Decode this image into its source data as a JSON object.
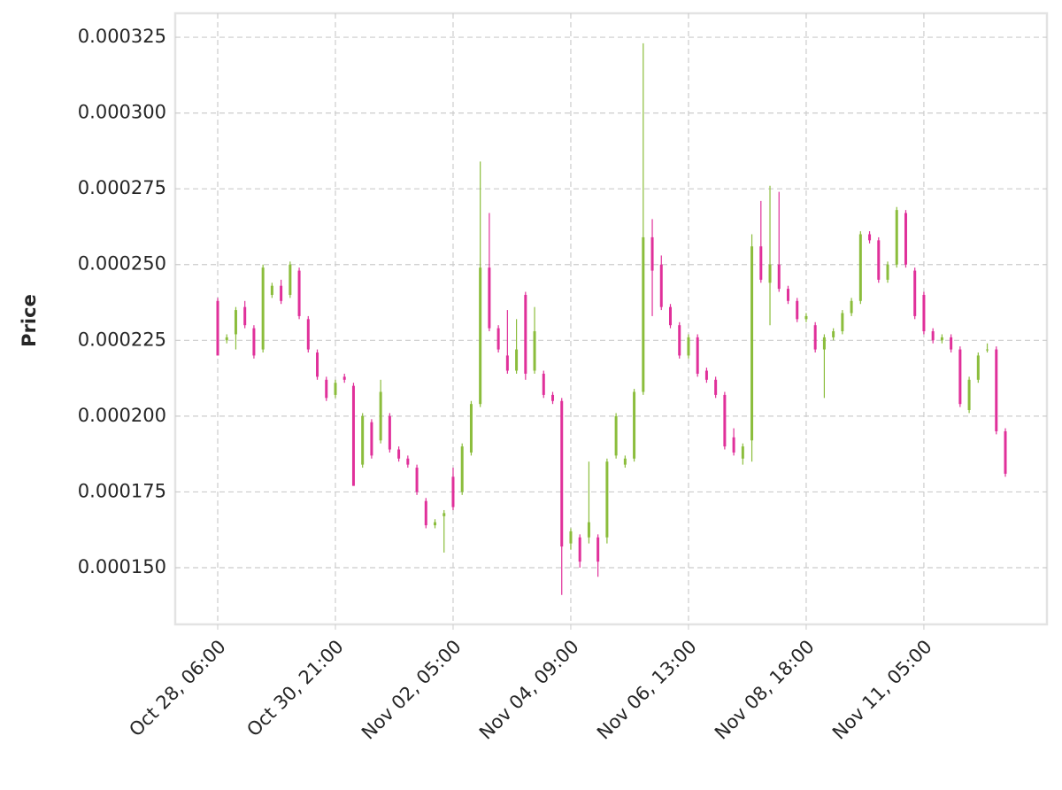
{
  "chart_data": {
    "type": "candlestick",
    "ylabel": "Price",
    "categories": [
      "Oct 28, 06:00",
      null,
      null,
      null,
      null,
      null,
      null,
      null,
      null,
      null,
      null,
      null,
      null,
      "Oct 30, 21:00",
      null,
      null,
      null,
      null,
      null,
      null,
      null,
      null,
      null,
      null,
      null,
      null,
      "Nov 02, 05:00",
      null,
      null,
      null,
      null,
      null,
      null,
      null,
      null,
      null,
      null,
      null,
      null,
      "Nov 04, 09:00",
      null,
      null,
      null,
      null,
      null,
      null,
      null,
      null,
      null,
      null,
      null,
      null,
      "Nov 06, 13:00",
      null,
      null,
      null,
      null,
      null,
      null,
      null,
      null,
      null,
      null,
      null,
      null,
      "Nov 08, 18:00",
      null,
      null,
      null,
      null,
      null,
      null,
      null,
      null,
      null,
      null,
      null,
      null,
      "Nov 11, 05:00",
      null,
      null,
      null,
      null,
      null,
      null,
      null,
      null,
      null
    ],
    "open": [
      0.000238,
      0.000225,
      0.000227,
      0.000236,
      0.000229,
      0.000222,
      0.00024,
      0.000243,
      0.00024,
      0.000248,
      0.000232,
      0.000221,
      0.000212,
      0.000207,
      0.000213,
      0.00021,
      0.000184,
      0.000198,
      0.000192,
      0.0002,
      0.000189,
      0.000186,
      0.000183,
      0.000172,
      0.000164,
      0.000167,
      0.00018,
      0.000175,
      0.000188,
      0.000204,
      0.000249,
      0.000229,
      0.00022,
      0.000215,
      0.00024,
      0.000215,
      0.000214,
      0.000207,
      0.000205,
      0.000158,
      0.00016,
      0.00016,
      0.00016,
      0.00016,
      0.000187,
      0.000184,
      0.000186,
      0.000208,
      0.000259,
      0.00025,
      0.000236,
      0.00023,
      0.00022,
      0.000226,
      0.000215,
      0.000212,
      0.000207,
      0.000193,
      0.000186,
      0.000192,
      0.000256,
      0.000244,
      0.00025,
      0.000242,
      0.000238,
      0.000232,
      0.00023,
      0.000222,
      0.000226,
      0.000228,
      0.000234,
      0.000238,
      0.00026,
      0.000258,
      0.000245,
      0.00025,
      0.000267,
      0.000248,
      0.00024,
      0.000228,
      0.000225,
      0.000226,
      0.000222,
      0.000202,
      0.000212,
      0.000222,
      0.000222,
      0.000195
    ],
    "high": [
      0.000239,
      0.000227,
      0.000236,
      0.000238,
      0.00023,
      0.00025,
      0.000244,
      0.000245,
      0.000251,
      0.000249,
      0.000233,
      0.000222,
      0.000213,
      0.000212,
      0.000214,
      0.000211,
      0.000201,
      0.000199,
      0.000212,
      0.000201,
      0.00019,
      0.000187,
      0.000184,
      0.000173,
      0.000166,
      0.000169,
      0.000183,
      0.000191,
      0.000205,
      0.000284,
      0.000267,
      0.00023,
      0.000235,
      0.000232,
      0.000241,
      0.000236,
      0.000215,
      0.000208,
      0.000206,
      0.000163,
      0.000161,
      0.000185,
      0.000161,
      0.000186,
      0.000201,
      0.000187,
      0.000209,
      0.000323,
      0.000265,
      0.000253,
      0.000237,
      0.000231,
      0.000227,
      0.000227,
      0.000216,
      0.000213,
      0.000208,
      0.000196,
      0.000191,
      0.00026,
      0.000271,
      0.000276,
      0.000274,
      0.000243,
      0.000239,
      0.000234,
      0.000231,
      0.000227,
      0.000229,
      0.000235,
      0.000239,
      0.000261,
      0.000261,
      0.000259,
      0.000251,
      0.000269,
      0.000268,
      0.000249,
      0.000241,
      0.000229,
      0.000227,
      0.000227,
      0.000223,
      0.000213,
      0.000221,
      0.000224,
      0.000223,
      0.000196
    ],
    "low": [
      0.00022,
      0.000224,
      0.000222,
      0.000229,
      0.000219,
      0.000221,
      0.000239,
      0.000237,
      0.000239,
      0.000232,
      0.000221,
      0.000212,
      0.000205,
      0.000206,
      0.000211,
      0.000177,
      0.000183,
      0.000186,
      0.000191,
      0.000188,
      0.000185,
      0.000183,
      0.000174,
      0.000163,
      0.000163,
      0.000155,
      0.000169,
      0.000174,
      0.000187,
      0.000203,
      0.000228,
      0.000221,
      0.000214,
      0.000214,
      0.000212,
      0.000214,
      0.000206,
      0.000204,
      0.000141,
      0.000156,
      0.00015,
      0.000158,
      0.000147,
      0.000158,
      0.000186,
      0.000183,
      0.000185,
      0.000207,
      0.000233,
      0.000235,
      0.000229,
      0.000219,
      0.000219,
      0.000213,
      0.000211,
      0.000206,
      0.000189,
      0.000187,
      0.000184,
      0.000185,
      0.000244,
      0.00023,
      0.000241,
      0.000237,
      0.000231,
      0.000231,
      0.000221,
      0.000206,
      0.000225,
      0.000227,
      0.000233,
      0.000237,
      0.000257,
      0.000244,
      0.000244,
      0.000249,
      0.000249,
      0.000232,
      0.000227,
      0.000224,
      0.000224,
      0.000221,
      0.000203,
      0.000201,
      0.000211,
      0.000221,
      0.000194,
      0.00018
    ],
    "close": [
      0.00022,
      0.000226,
      0.000235,
      0.00023,
      0.00022,
      0.000249,
      0.000243,
      0.000238,
      0.00025,
      0.000233,
      0.000222,
      0.000213,
      0.000206,
      0.000211,
      0.000212,
      0.000177,
      0.0002,
      0.000187,
      0.000208,
      0.000189,
      0.000186,
      0.000184,
      0.000175,
      0.000164,
      0.000165,
      0.000168,
      0.00017,
      0.00019,
      0.000204,
      0.000249,
      0.000229,
      0.000222,
      0.000215,
      0.000222,
      0.000214,
      0.000228,
      0.000207,
      0.000205,
      0.000157,
      0.000162,
      0.000152,
      0.000165,
      0.000152,
      0.000185,
      0.0002,
      0.000186,
      0.000208,
      0.000259,
      0.000248,
      0.000236,
      0.00023,
      0.00022,
      0.000226,
      0.000214,
      0.000212,
      0.000207,
      0.00019,
      0.000188,
      0.00019,
      0.000256,
      0.000245,
      0.00025,
      0.000242,
      0.000238,
      0.000232,
      0.000233,
      0.000222,
      0.000226,
      0.000228,
      0.000234,
      0.000238,
      0.00026,
      0.000258,
      0.000245,
      0.00025,
      0.000268,
      0.00025,
      0.000233,
      0.000228,
      0.000225,
      0.000226,
      0.000222,
      0.000204,
      0.000212,
      0.00022,
      0.000222,
      0.000195,
      0.000181
    ],
    "up_color": "#8bbd3c",
    "down_color": "#e0309a",
    "ylim": [
      0.0001313,
      0.0003329
    ],
    "yticks": [
      {
        "value": 0.00015,
        "label": "0.000150"
      },
      {
        "value": 0.000175,
        "label": "0.000175"
      },
      {
        "value": 0.0002,
        "label": "0.000200"
      },
      {
        "value": 0.000225,
        "label": "0.000225"
      },
      {
        "value": 0.00025,
        "label": "0.000250"
      },
      {
        "value": 0.000275,
        "label": "0.000275"
      },
      {
        "value": 0.0003,
        "label": "0.000300"
      },
      {
        "value": 0.000325,
        "label": "0.000325"
      }
    ],
    "grid": true
  }
}
